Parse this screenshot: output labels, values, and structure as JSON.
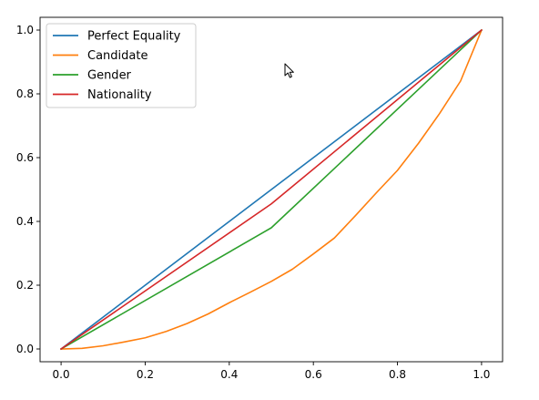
{
  "chart_data": {
    "type": "line",
    "title": "",
    "xlabel": "",
    "ylabel": "",
    "xlim": [
      -0.05,
      1.05
    ],
    "ylim": [
      -0.04,
      1.04
    ],
    "xticks": [
      0.0,
      0.2,
      0.4,
      0.6,
      0.8,
      1.0
    ],
    "yticks": [
      0.0,
      0.2,
      0.4,
      0.6,
      0.8,
      1.0
    ],
    "xtick_labels": [
      "0.0",
      "0.2",
      "0.4",
      "0.6",
      "0.8",
      "1.0"
    ],
    "ytick_labels": [
      "0.0",
      "0.2",
      "0.4",
      "0.6",
      "0.8",
      "1.0"
    ],
    "grid": false,
    "legend_position": "upper-left",
    "series": [
      {
        "name": "Perfect Equality",
        "color": "#1f77b4",
        "x": [
          0.0,
          1.0
        ],
        "y": [
          0.0,
          1.0
        ]
      },
      {
        "name": "Candidate",
        "color": "#ff7f0e",
        "x": [
          0.0,
          0.05,
          0.1,
          0.15,
          0.2,
          0.25,
          0.3,
          0.35,
          0.4,
          0.45,
          0.5,
          0.55,
          0.6,
          0.65,
          0.7,
          0.75,
          0.8,
          0.85,
          0.9,
          0.95,
          1.0
        ],
        "y": [
          0.0,
          0.002,
          0.01,
          0.022,
          0.035,
          0.055,
          0.08,
          0.11,
          0.145,
          0.178,
          0.212,
          0.25,
          0.298,
          0.348,
          0.418,
          0.49,
          0.56,
          0.645,
          0.738,
          0.84,
          1.0
        ]
      },
      {
        "name": "Gender",
        "color": "#2ca02c",
        "x": [
          0.0,
          0.5,
          1.0
        ],
        "y": [
          0.0,
          0.38,
          1.0
        ]
      },
      {
        "name": "Nationality",
        "color": "#d62728",
        "x": [
          0.0,
          0.5,
          1.0
        ],
        "y": [
          0.0,
          0.455,
          1.0
        ]
      }
    ]
  },
  "cursor": {
    "icon": "mouse-pointer-icon"
  }
}
